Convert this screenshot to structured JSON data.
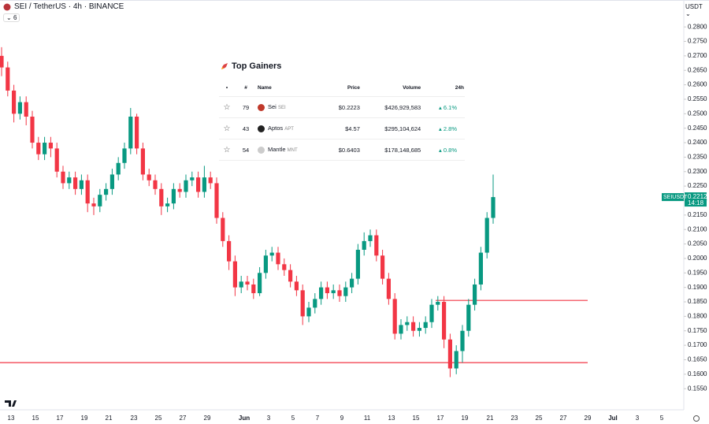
{
  "header": {
    "symbol": "SEI / TetherUS · 4h · BINANCE",
    "indicators": 6,
    "currency": "USDT"
  },
  "chart_data": {
    "type": "candlestick",
    "up_color": "#089981",
    "down_color": "#f23645",
    "open": [
      0.27,
      0.266,
      0.258,
      0.25,
      0.254,
      0.249,
      0.24,
      0.236,
      0.24,
      0.238,
      0.23,
      0.226,
      0.228,
      0.224,
      0.227,
      0.219,
      0.218,
      0.222,
      0.224,
      0.229,
      0.233,
      0.238,
      0.249,
      0.238,
      0.229,
      0.227,
      0.224,
      0.218,
      0.219,
      0.224,
      0.223,
      0.227,
      0.228,
      0.223,
      0.228,
      0.226,
      0.214,
      0.206,
      0.199,
      0.19,
      0.192,
      0.191,
      0.188,
      0.195,
      0.201,
      0.202,
      0.198,
      0.196,
      0.192,
      0.189,
      0.18,
      0.183,
      0.186,
      0.19,
      0.188,
      0.189,
      0.187,
      0.19,
      0.193,
      0.203,
      0.206,
      0.208,
      0.201,
      0.193,
      0.186,
      0.174,
      0.177,
      0.178,
      0.175,
      0.176,
      0.178,
      0.184,
      0.185,
      0.172,
      0.162,
      0.168,
      0.175,
      0.184,
      0.191,
      0.202,
      0.214
    ],
    "high": [
      0.273,
      0.268,
      0.26,
      0.256,
      0.256,
      0.251,
      0.242,
      0.242,
      0.242,
      0.24,
      0.232,
      0.23,
      0.23,
      0.229,
      0.229,
      0.221,
      0.224,
      0.226,
      0.231,
      0.235,
      0.24,
      0.252,
      0.25,
      0.24,
      0.231,
      0.229,
      0.226,
      0.221,
      0.226,
      0.226,
      0.229,
      0.23,
      0.23,
      0.232,
      0.23,
      0.228,
      0.216,
      0.208,
      0.201,
      0.194,
      0.194,
      0.193,
      0.197,
      0.203,
      0.204,
      0.204,
      0.2,
      0.198,
      0.194,
      0.191,
      0.185,
      0.188,
      0.192,
      0.192,
      0.191,
      0.191,
      0.192,
      0.195,
      0.205,
      0.209,
      0.21,
      0.21,
      0.203,
      0.195,
      0.188,
      0.179,
      0.18,
      0.18,
      0.178,
      0.18,
      0.186,
      0.187,
      0.187,
      0.174,
      0.17,
      0.177,
      0.186,
      0.193,
      0.204,
      0.216,
      0.229
    ],
    "low": [
      0.263,
      0.256,
      0.247,
      0.248,
      0.246,
      0.238,
      0.234,
      0.234,
      0.235,
      0.228,
      0.224,
      0.224,
      0.222,
      0.222,
      0.216,
      0.215,
      0.216,
      0.22,
      0.222,
      0.227,
      0.231,
      0.236,
      0.236,
      0.227,
      0.225,
      0.222,
      0.215,
      0.216,
      0.217,
      0.221,
      0.221,
      0.225,
      0.221,
      0.221,
      0.224,
      0.212,
      0.204,
      0.196,
      0.187,
      0.188,
      0.189,
      0.186,
      0.187,
      0.193,
      0.199,
      0.196,
      0.194,
      0.19,
      0.187,
      0.177,
      0.178,
      0.181,
      0.184,
      0.186,
      0.186,
      0.185,
      0.185,
      0.188,
      0.191,
      0.201,
      0.204,
      0.199,
      0.191,
      0.184,
      0.172,
      0.172,
      0.175,
      0.173,
      0.173,
      0.174,
      0.176,
      0.182,
      0.169,
      0.159,
      0.16,
      0.164,
      0.173,
      0.182,
      0.189,
      0.2,
      0.212
    ],
    "close": [
      0.266,
      0.258,
      0.25,
      0.254,
      0.249,
      0.24,
      0.236,
      0.24,
      0.238,
      0.23,
      0.226,
      0.228,
      0.224,
      0.227,
      0.219,
      0.218,
      0.222,
      0.224,
      0.229,
      0.233,
      0.238,
      0.249,
      0.238,
      0.229,
      0.227,
      0.224,
      0.218,
      0.219,
      0.224,
      0.223,
      0.227,
      0.228,
      0.223,
      0.228,
      0.226,
      0.214,
      0.206,
      0.199,
      0.19,
      0.192,
      0.191,
      0.188,
      0.195,
      0.201,
      0.202,
      0.198,
      0.196,
      0.192,
      0.189,
      0.18,
      0.183,
      0.186,
      0.19,
      0.188,
      0.189,
      0.187,
      0.19,
      0.193,
      0.203,
      0.206,
      0.208,
      0.201,
      0.193,
      0.186,
      0.174,
      0.177,
      0.178,
      0.175,
      0.176,
      0.178,
      0.184,
      0.185,
      0.172,
      0.162,
      0.168,
      0.175,
      0.184,
      0.191,
      0.202,
      0.214,
      0.2212
    ],
    "hlines": [
      {
        "value": 0.1855,
        "color": "#f23645"
      },
      {
        "value": 0.164,
        "color": "#f23645"
      }
    ],
    "last_price": {
      "value": 0.2212,
      "label": "0.2212"
    },
    "last_symbol": "SEIUSDT",
    "countdown": "14:18",
    "ylim": [
      0.1477,
      0.2893
    ],
    "yticks": [
      {
        "value": 0.155,
        "label": "0.1550"
      },
      {
        "value": 0.16,
        "label": "0.1600"
      },
      {
        "value": 0.165,
        "label": "0.1650"
      },
      {
        "value": 0.17,
        "label": "0.1700"
      },
      {
        "value": 0.175,
        "label": "0.1750"
      },
      {
        "value": 0.18,
        "label": "0.1800"
      },
      {
        "value": 0.185,
        "label": "0.1850"
      },
      {
        "value": 0.19,
        "label": "0.1900"
      },
      {
        "value": 0.195,
        "label": "0.1950"
      },
      {
        "value": 0.2,
        "label": "0.2000"
      },
      {
        "value": 0.205,
        "label": "0.2050"
      },
      {
        "value": 0.21,
        "label": "0.2100"
      },
      {
        "value": 0.215,
        "label": "0.2150"
      },
      {
        "value": 0.22,
        "label": "0.2200"
      },
      {
        "value": 0.225,
        "label": "0.2250"
      },
      {
        "value": 0.23,
        "label": "0.2300"
      },
      {
        "value": 0.235,
        "label": "0.2350"
      },
      {
        "value": 0.24,
        "label": "0.2400"
      },
      {
        "value": 0.245,
        "label": "0.2450"
      },
      {
        "value": 0.25,
        "label": "0.2500"
      },
      {
        "value": 0.255,
        "label": "0.2550"
      },
      {
        "value": 0.26,
        "label": "0.2600"
      },
      {
        "value": 0.265,
        "label": "0.2650"
      },
      {
        "value": 0.27,
        "label": "0.2700"
      },
      {
        "value": 0.275,
        "label": "0.2750"
      },
      {
        "value": 0.28,
        "label": "0.2800"
      }
    ],
    "x_labels": [
      13,
      15,
      17,
      19,
      21,
      23,
      25,
      27,
      29,
      "Jun",
      3,
      5,
      7,
      9,
      11,
      13,
      15,
      17,
      19,
      21,
      23,
      25,
      27,
      29,
      "Jul",
      3,
      5
    ]
  },
  "widget": {
    "title": "Top Gainers",
    "columns": [
      "•",
      "#",
      "Name",
      "Price",
      "Volume",
      "24h"
    ],
    "rows": [
      [
        79,
        "Sei",
        "SEI",
        "$0.2223",
        "$426,929,583",
        "6.1%"
      ],
      [
        43,
        "Aptos",
        "APT",
        "$4.57",
        "$295,104,624",
        "2.8%"
      ],
      [
        54,
        "Mantle",
        "MNT",
        "$0.6403",
        "$178,148,685",
        "0.8%"
      ]
    ]
  }
}
